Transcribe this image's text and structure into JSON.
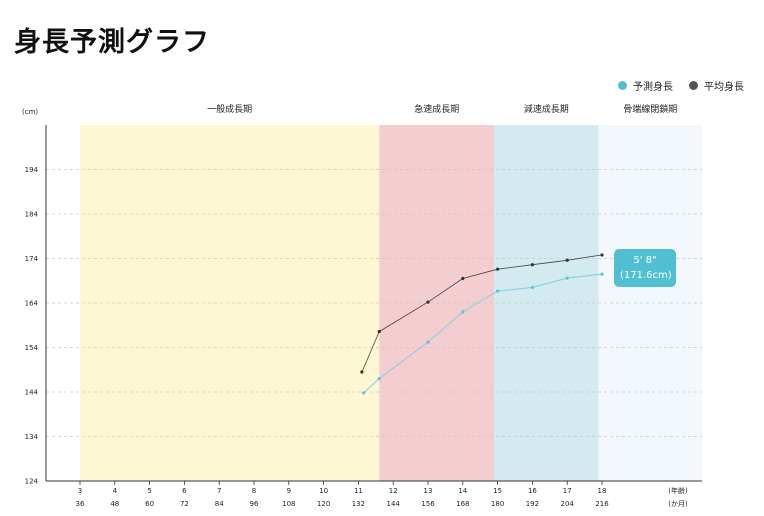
{
  "title": "身長予測グラフ",
  "legend": [
    {
      "label": "予測身長",
      "color": "#4fbfd1"
    },
    {
      "label": "平均身長",
      "color": "#555555"
    }
  ],
  "colors": {
    "predicted": "#8ccfe0",
    "average": "#444444",
    "callout": "#4fbfd1"
  },
  "callout": {
    "line1": "5' 8\"",
    "line2": "(171.6cm)"
  },
  "chart_data": {
    "type": "line",
    "title": "身長予測グラフ",
    "ylabel": "(cm)",
    "xlabel_years": "(年齢)",
    "xlabel_months": "(か月)",
    "ylim": [
      124,
      204
    ],
    "yticks": [
      124,
      134,
      144,
      154,
      164,
      174,
      184,
      194
    ],
    "x_years": [
      3,
      4,
      5,
      6,
      7,
      8,
      9,
      10,
      11,
      12,
      13,
      14,
      15,
      16,
      17,
      18
    ],
    "x_months": [
      36,
      48,
      60,
      72,
      84,
      96,
      108,
      120,
      132,
      144,
      156,
      168,
      180,
      192,
      204,
      216
    ],
    "grid": "horizontal dashed",
    "legend_position": "top-right",
    "phases": [
      {
        "label": "一般成長期",
        "start": 3,
        "end": 11.6,
        "color": "#fdf8d3"
      },
      {
        "label": "急速成長期",
        "start": 11.6,
        "end": 14.9,
        "color": "#f4cdd0"
      },
      {
        "label": "減速成長期",
        "start": 14.9,
        "end": 17.9,
        "color": "#d2eaf0"
      },
      {
        "label": "骨端線閉鎖期",
        "start": 17.9,
        "end": 21,
        "color": "#f2f8fb"
      }
    ],
    "series": [
      {
        "name": "予測身長",
        "points": [
          [
            11.15,
            143.8
          ],
          [
            11.6,
            147
          ],
          [
            13,
            155.2
          ],
          [
            14,
            162
          ],
          [
            15,
            166.7
          ],
          [
            16,
            167.5
          ],
          [
            17,
            169.6
          ],
          [
            18,
            170.5
          ]
        ]
      },
      {
        "name": "平均身長",
        "points": [
          [
            11.1,
            148.5
          ],
          [
            11.6,
            157.6
          ],
          [
            13,
            164.2
          ],
          [
            14,
            169.5
          ],
          [
            15,
            171.6
          ],
          [
            16,
            172.6
          ],
          [
            17,
            173.6
          ],
          [
            18,
            174.8
          ]
        ]
      }
    ]
  }
}
